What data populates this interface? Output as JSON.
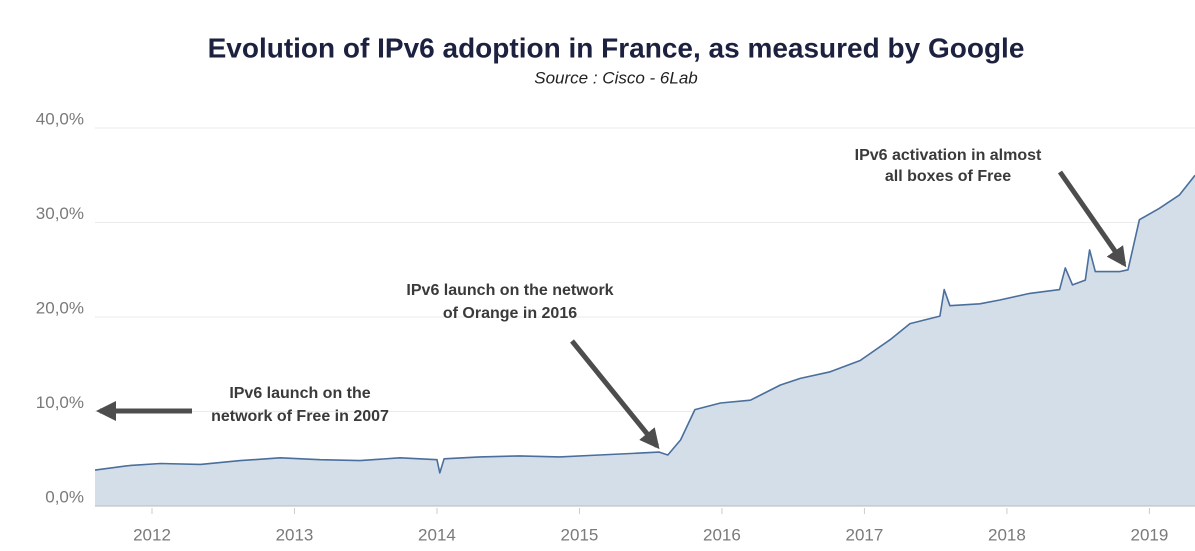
{
  "chart_data": {
    "type": "area",
    "title": "Evolution of IPv6 adoption in France, as measured by Google",
    "subtitle": "Source : Cisco - 6Lab",
    "annotations": [
      [
        "IPv6 launch on the",
        "network of Free in 2007"
      ],
      [
        "IPv6 launch on the network",
        "of Orange in 2016"
      ],
      [
        "IPv6 activation in almost",
        "all boxes of Free"
      ]
    ],
    "x": [
      2011.6,
      2011.85,
      2012.06,
      2012.34,
      2012.62,
      2012.9,
      2013.18,
      2013.46,
      2013.74,
      2014.0,
      2014.02,
      2014.05,
      2014.3,
      2014.58,
      2014.86,
      2015.14,
      2015.42,
      2015.56,
      2015.62,
      2015.71,
      2015.81,
      2015.99,
      2016.2,
      2016.41,
      2016.55,
      2016.76,
      2016.97,
      2017.18,
      2017.32,
      2017.53,
      2017.56,
      2017.6,
      2017.81,
      2017.95,
      2018.16,
      2018.37,
      2018.41,
      2018.46,
      2018.55,
      2018.58,
      2018.62,
      2018.79,
      2018.85,
      2018.93,
      2019.07,
      2019.21,
      2019.32
    ],
    "values": [
      3.8,
      4.3,
      4.5,
      4.4,
      4.8,
      5.1,
      4.9,
      4.8,
      5.1,
      4.9,
      3.5,
      5.0,
      5.2,
      5.3,
      5.2,
      5.4,
      5.6,
      5.7,
      5.4,
      7.0,
      10.2,
      10.9,
      11.2,
      12.8,
      13.5,
      14.2,
      15.4,
      17.6,
      19.3,
      20.1,
      22.9,
      21.2,
      21.4,
      21.8,
      22.5,
      22.9,
      25.2,
      23.4,
      23.9,
      27.1,
      24.8,
      24.8,
      25.0,
      30.3,
      31.5,
      32.9,
      35.0
    ],
    "color": "#4a6f9c",
    "fill": "#d4dee9",
    "xlim": [
      2011.6,
      2019.32
    ],
    "xticks": [
      2012,
      2013,
      2014,
      2015,
      2016,
      2017,
      2018,
      2019
    ],
    "ylim": [
      0,
      40
    ],
    "yticks": [
      {
        "value": 0,
        "label": "0,0%"
      },
      {
        "value": 10,
        "label": "10,0%"
      },
      {
        "value": 20,
        "label": "20,0%"
      },
      {
        "value": 30,
        "label": "30,0%"
      },
      {
        "value": 40,
        "label": "40,0%"
      }
    ],
    "grid": true
  }
}
